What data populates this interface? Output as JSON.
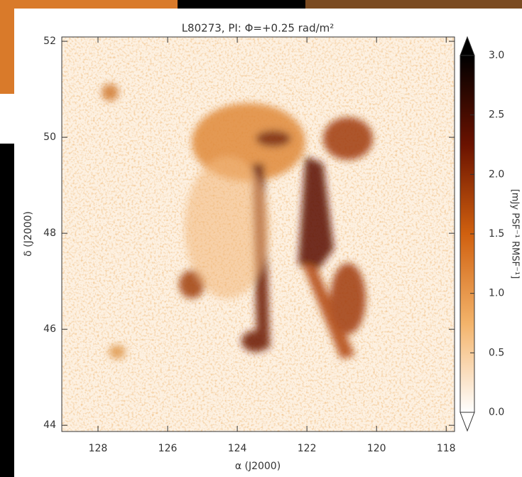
{
  "chart_data": {
    "type": "image",
    "title": "L80273, PI: Φ=+0.25 rad/m²",
    "x_label": "α (J2000)",
    "y_label": "δ (J2000)",
    "colorbar_label": "[mJy PSF⁻¹ RMSF⁻¹]",
    "xlim": [
      129.04,
      117.76
    ],
    "xticks": [
      128,
      126,
      124,
      122,
      120,
      118
    ],
    "ylim": [
      43.87,
      52.09
    ],
    "yticks": [
      44,
      46,
      48,
      50,
      52
    ],
    "clim": [
      0,
      3
    ],
    "cticks": [
      {
        "value": 0,
        "label": "0.0"
      },
      0.5,
      {
        "value": 1,
        "label": "1.0"
      },
      1.5,
      {
        "value": 2,
        "label": "2.0"
      },
      2.5,
      {
        "value": 3,
        "label": "3.0"
      }
    ],
    "colormap": [
      "#ffffff",
      "#f3b36a",
      "#d0600f",
      "#6a1200",
      "#000000"
    ]
  }
}
